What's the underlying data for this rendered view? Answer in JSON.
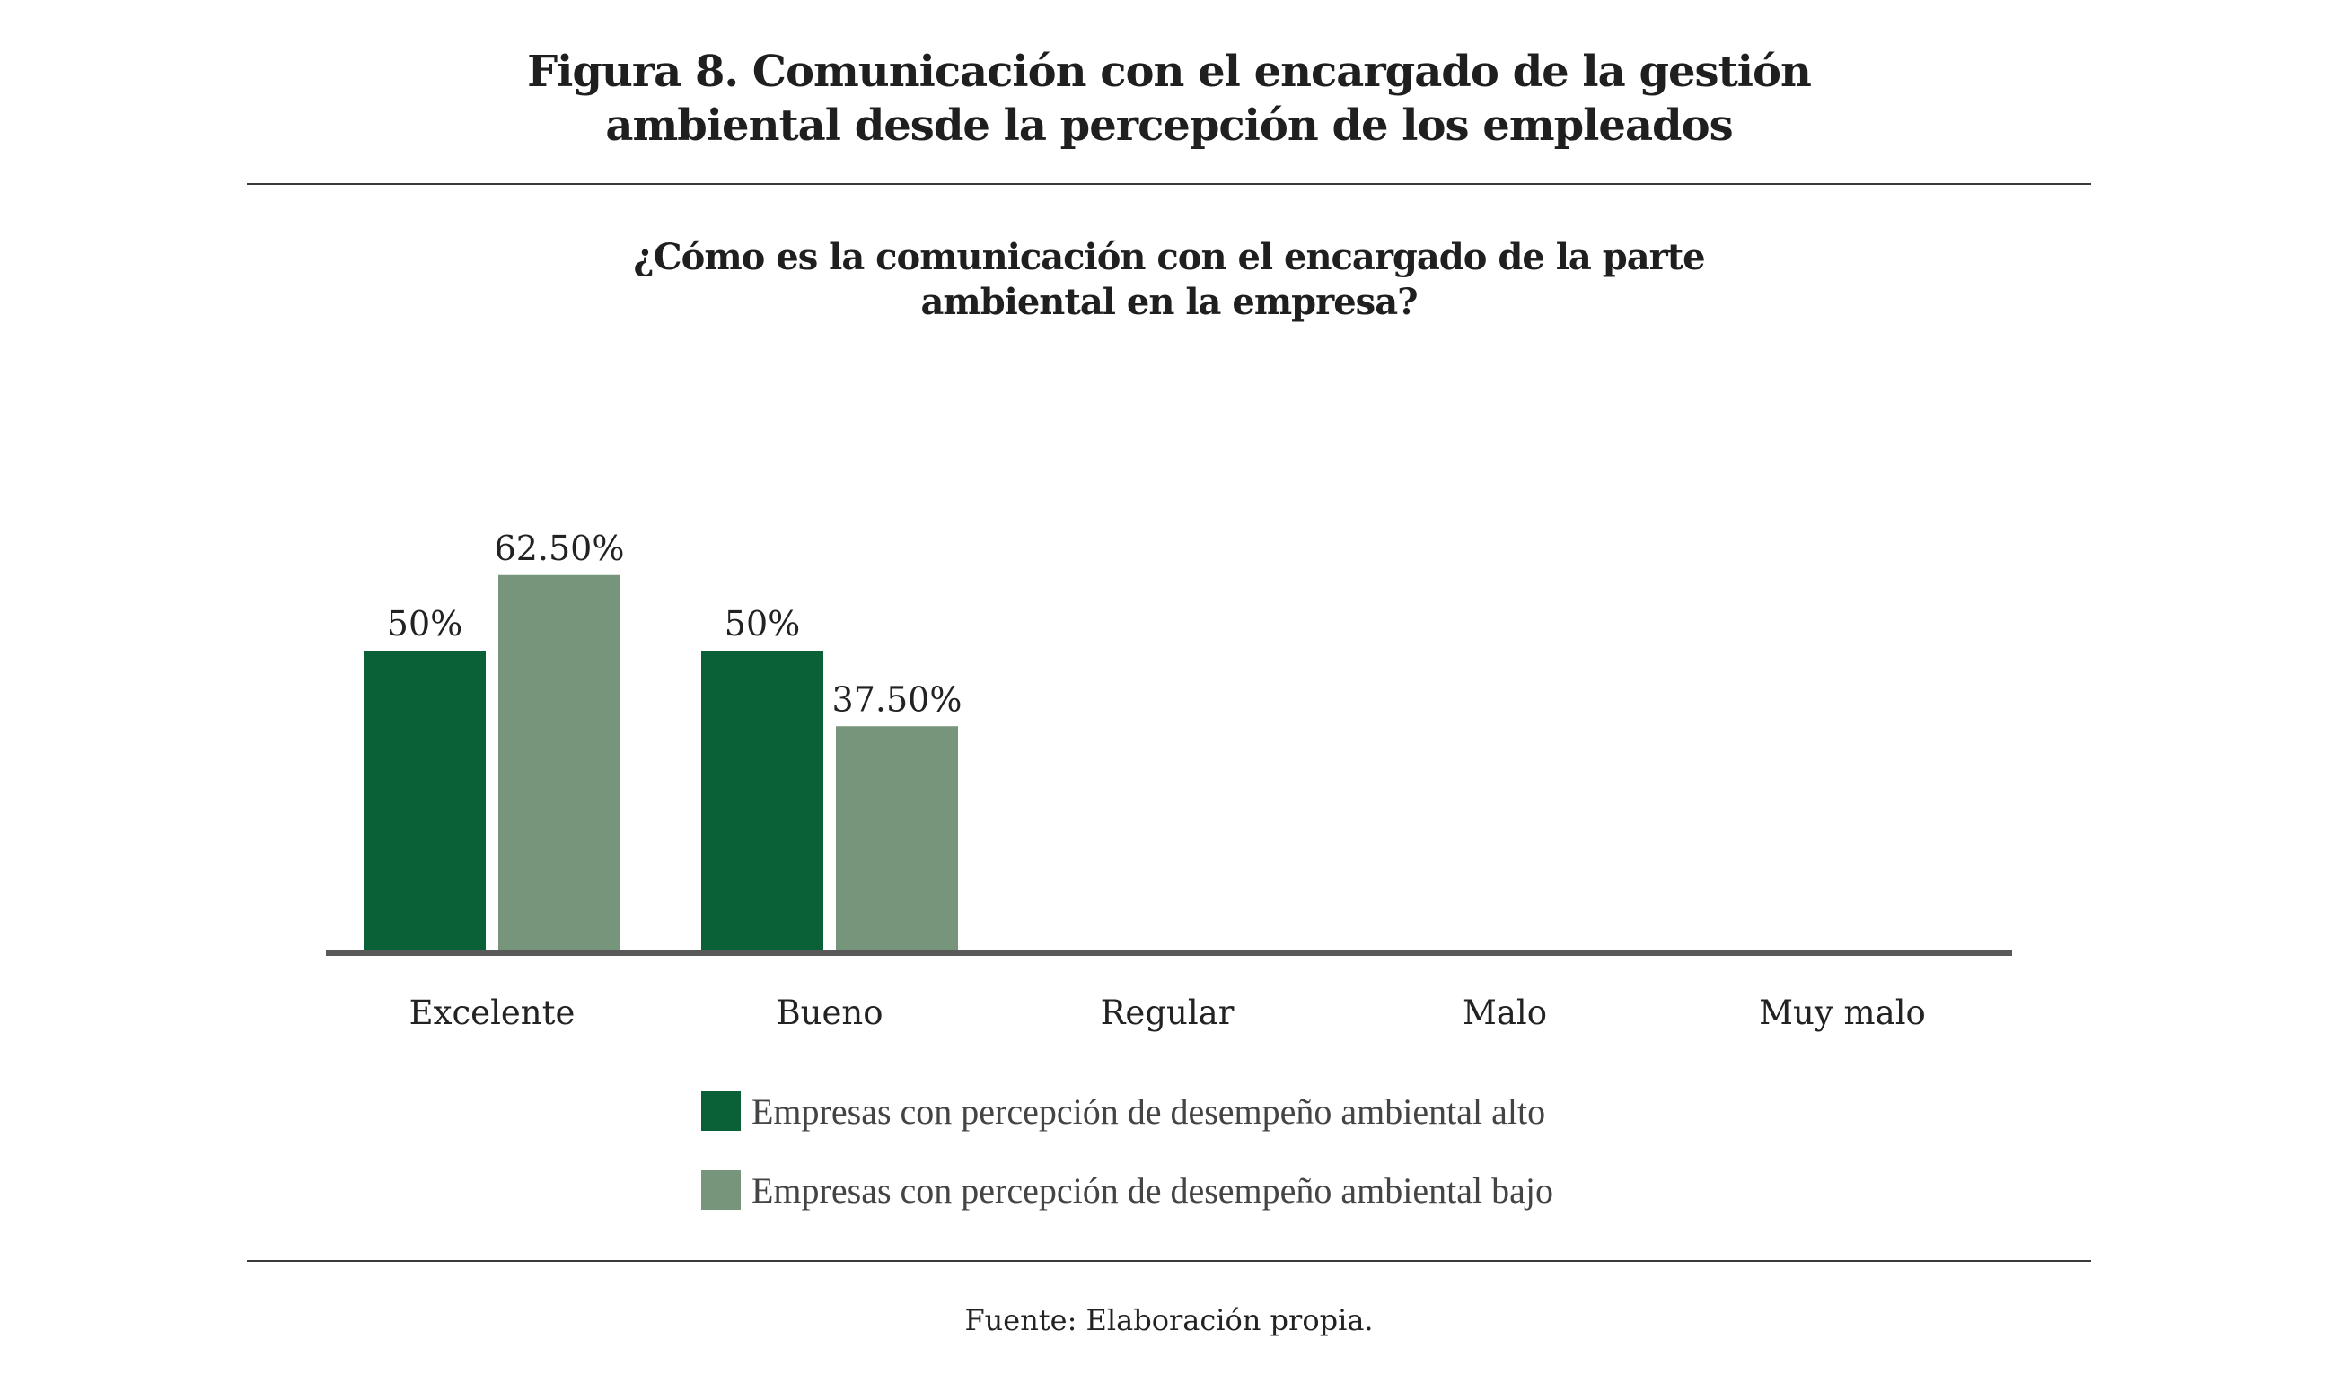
{
  "figure": {
    "title_line1": "Figura 8. Comunicación con el encargado de la gestión",
    "title_line2": "ambiental desde la percepción de los empleados",
    "source": "Fuente: Elaboración propia."
  },
  "colors": {
    "alto": "#0a6137",
    "bajo": "#76957a",
    "axis": "#595959",
    "rule": "#3a3a3a"
  },
  "chart_data": {
    "type": "bar",
    "title": "¿Cómo es la comunicación con el encargado de la parte ambiental en la empresa?",
    "title_line1": "¿Cómo es la comunicación con el encargado de la parte",
    "title_line2": "ambiental en la empresa?",
    "xlabel": "",
    "ylabel": "",
    "ylim": [
      0,
      100
    ],
    "grid": false,
    "legend_position": "bottom",
    "categories": [
      "Excelente",
      "Bueno",
      "Regular",
      "Malo",
      "Muy malo"
    ],
    "series": [
      {
        "name": "Empresas con percepción de desempeño ambiental alto",
        "color": "#0a6137",
        "values": [
          50,
          50,
          0,
          0,
          0
        ],
        "labels": [
          "50%",
          "50%",
          "",
          "",
          ""
        ]
      },
      {
        "name": "Empresas con percepción de desempeño ambiental bajo",
        "color": "#76957a",
        "values": [
          62.5,
          37.5,
          0,
          0,
          0
        ],
        "labels": [
          "62.50%",
          "37.50%",
          "",
          "",
          ""
        ]
      }
    ]
  }
}
